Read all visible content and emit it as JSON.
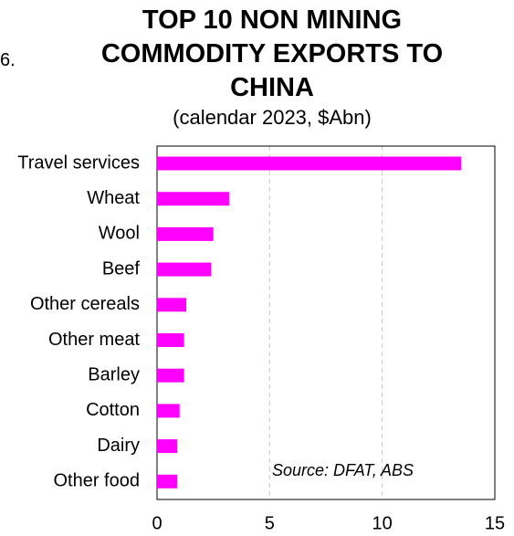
{
  "fragment": "6.",
  "chart_data": {
    "type": "bar",
    "orientation": "horizontal",
    "title": "TOP 10 NON MINING COMMODITY EXPORTS TO CHINA",
    "subtitle": "(calendar 2023, $Abn)",
    "annotation": "Source: DFAT, ABS",
    "categories": [
      "Travel services",
      "Wheat",
      "Wool",
      "Beef",
      "Other cereals",
      "Other meat",
      "Barley",
      "Cotton",
      "Dairy",
      "Other food"
    ],
    "values": [
      13.5,
      3.2,
      2.5,
      2.4,
      1.3,
      1.2,
      1.2,
      1.0,
      0.9,
      0.9
    ],
    "color": "#ff00ff",
    "xlim": [
      0,
      15
    ],
    "xticks": [
      0,
      5,
      10,
      15
    ],
    "grid": true
  }
}
